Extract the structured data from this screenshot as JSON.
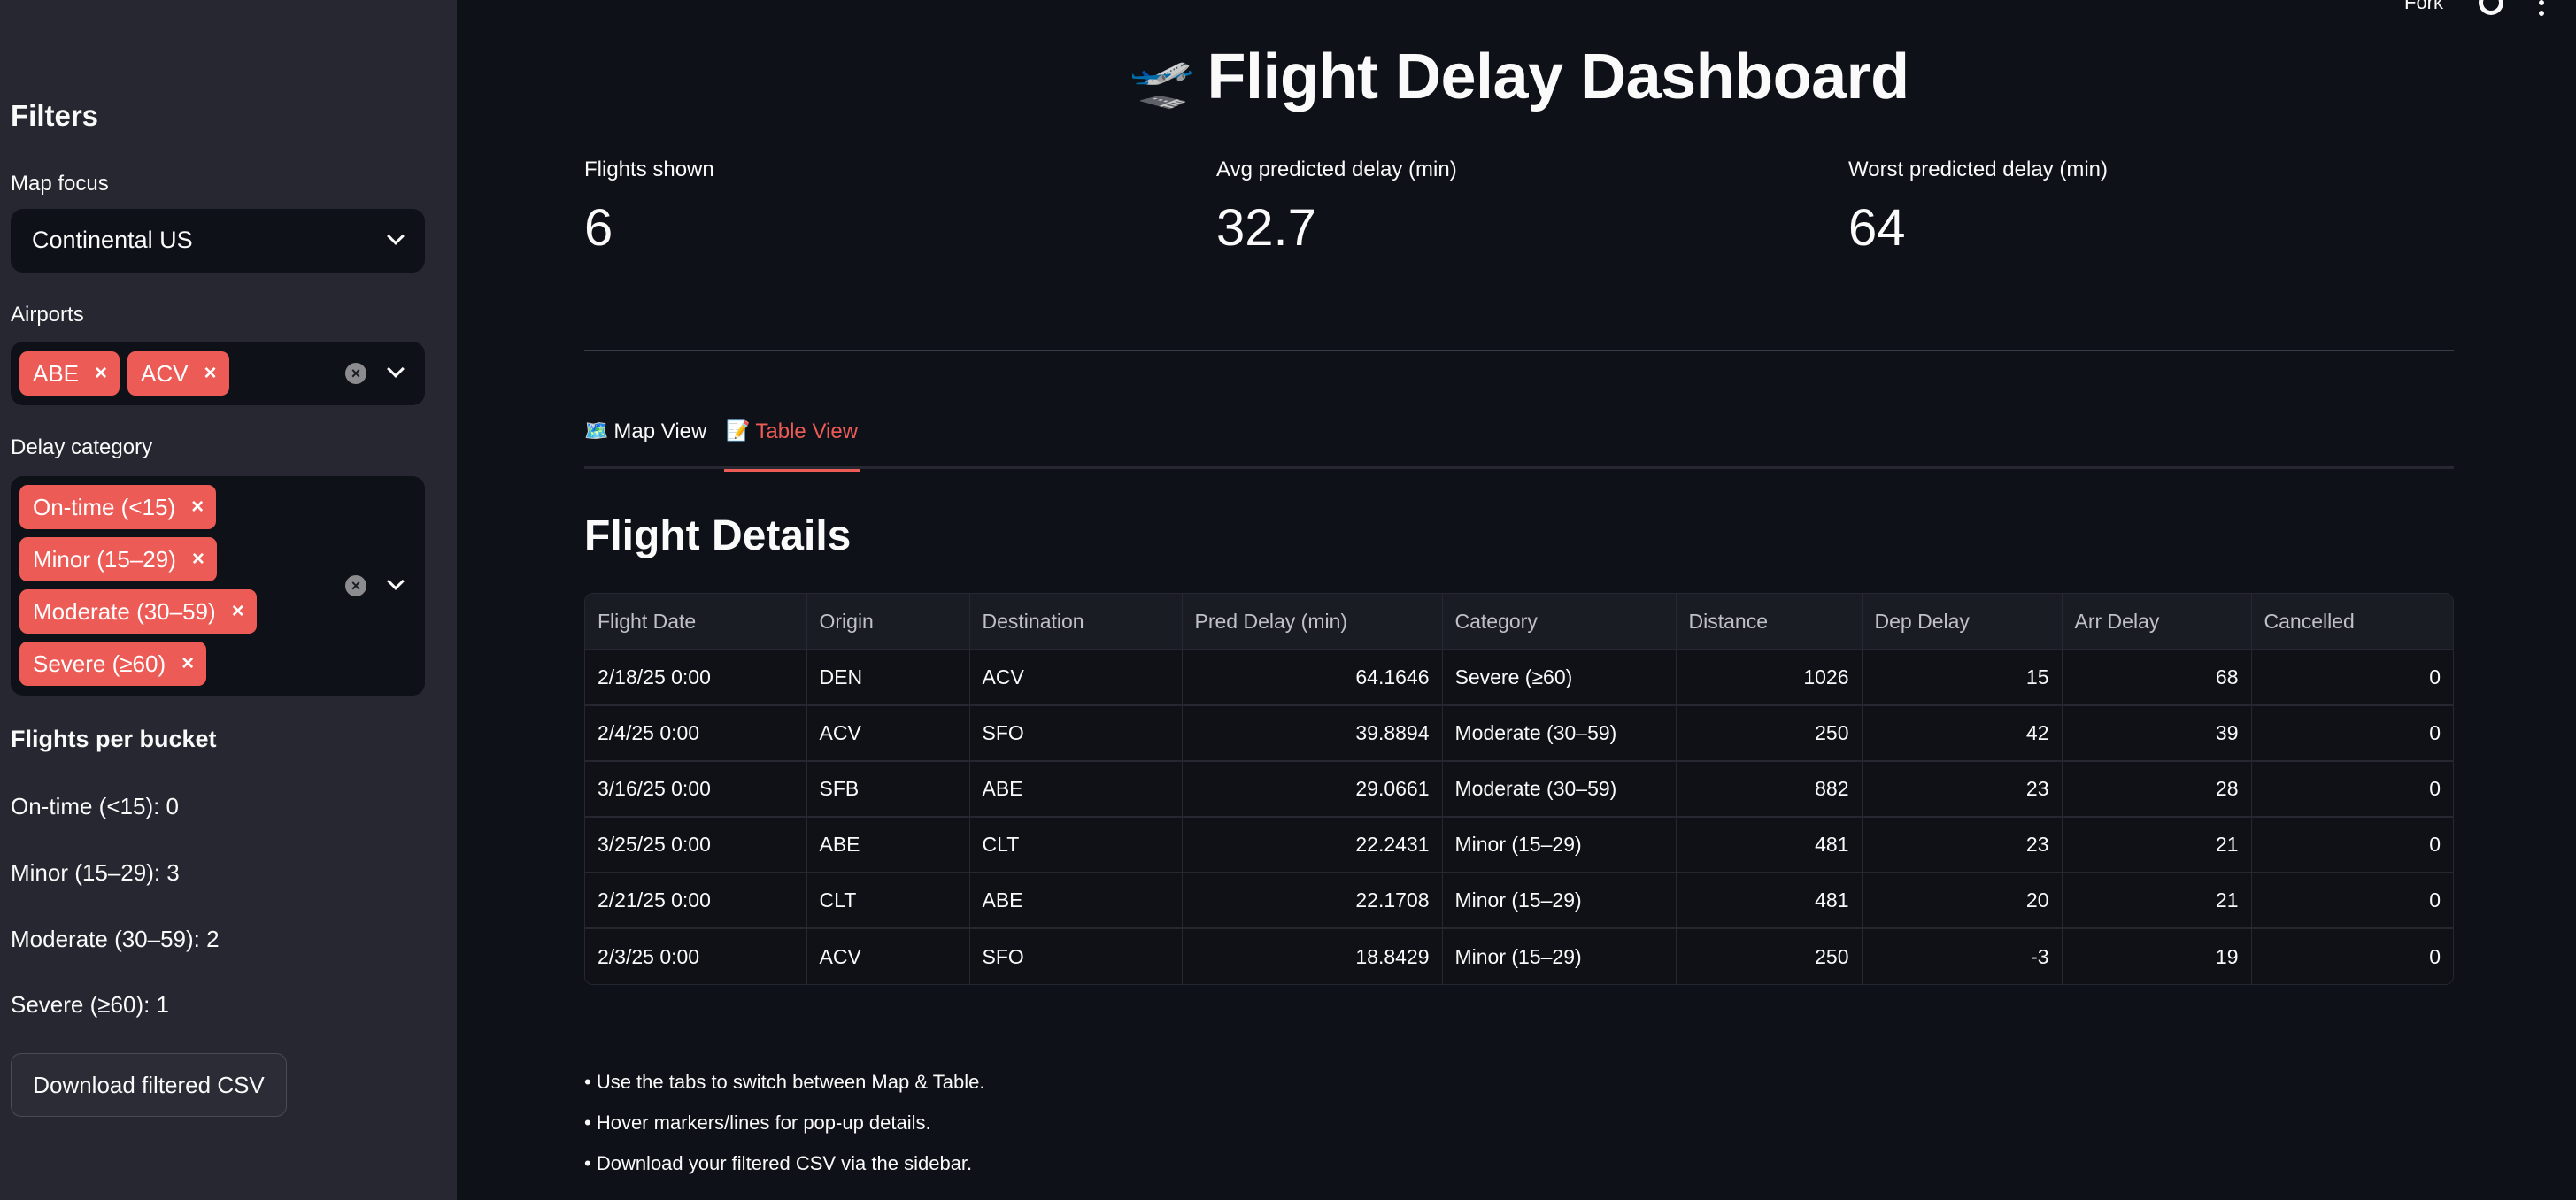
{
  "toolbar": {
    "fork_label": "Fork"
  },
  "sidebar": {
    "title": "Filters",
    "map_focus": {
      "label": "Map focus",
      "value": "Continental US"
    },
    "airports": {
      "label": "Airports",
      "selected": [
        "ABE",
        "ACV"
      ]
    },
    "delay_category": {
      "label": "Delay category",
      "selected": [
        "On-time (<15)",
        "Minor (15–29)",
        "Moderate (30–59)",
        "Severe (≥60)"
      ]
    },
    "buckets_title": "Flights per bucket",
    "buckets": [
      "On-time (<15): 0",
      "Minor (15–29): 3",
      "Moderate (30–59): 2",
      "Severe (≥60): 1"
    ],
    "download_label": "Download filtered CSV"
  },
  "header": {
    "emoji": "🛫",
    "title": "Flight Delay Dashboard"
  },
  "metrics": [
    {
      "label": "Flights shown",
      "value": "6"
    },
    {
      "label": "Avg predicted delay (min)",
      "value": "32.7"
    },
    {
      "label": "Worst predicted delay (min)",
      "value": "64"
    }
  ],
  "tabs": [
    {
      "emoji": "🗺️",
      "label": "Map View",
      "active": false
    },
    {
      "emoji": "📝",
      "label": "Table View",
      "active": true
    }
  ],
  "section_title": "Flight Details",
  "table": {
    "columns": [
      "Flight Date",
      "Origin",
      "Destination",
      "Pred Delay (min)",
      "Category",
      "Distance",
      "Dep Delay",
      "Arr Delay",
      "Cancelled"
    ],
    "rows": [
      [
        "2/18/25 0:00",
        "DEN",
        "ACV",
        "64.1646",
        "Severe (≥60)",
        "1026",
        "15",
        "68",
        "0"
      ],
      [
        "2/4/25 0:00",
        "ACV",
        "SFO",
        "39.8894",
        "Moderate (30–59)",
        "250",
        "42",
        "39",
        "0"
      ],
      [
        "3/16/25 0:00",
        "SFB",
        "ABE",
        "29.0661",
        "Moderate (30–59)",
        "882",
        "23",
        "28",
        "0"
      ],
      [
        "3/25/25 0:00",
        "ABE",
        "CLT",
        "22.2431",
        "Minor (15–29)",
        "481",
        "23",
        "21",
        "0"
      ],
      [
        "2/21/25 0:00",
        "CLT",
        "ABE",
        "22.1708",
        "Minor (15–29)",
        "481",
        "20",
        "21",
        "0"
      ],
      [
        "2/3/25 0:00",
        "ACV",
        "SFO",
        "18.8429",
        "Minor (15–29)",
        "250",
        "-3",
        "19",
        "0"
      ]
    ]
  },
  "notes": [
    "• Use the tabs to switch between Map & Table.",
    "• Hover markers/lines for pop-up details.",
    "• Download your filtered CSV via the sidebar."
  ],
  "colors": {
    "accent": "#ed5b56",
    "sidebar_bg": "#262730",
    "main_bg": "#0e1117"
  }
}
